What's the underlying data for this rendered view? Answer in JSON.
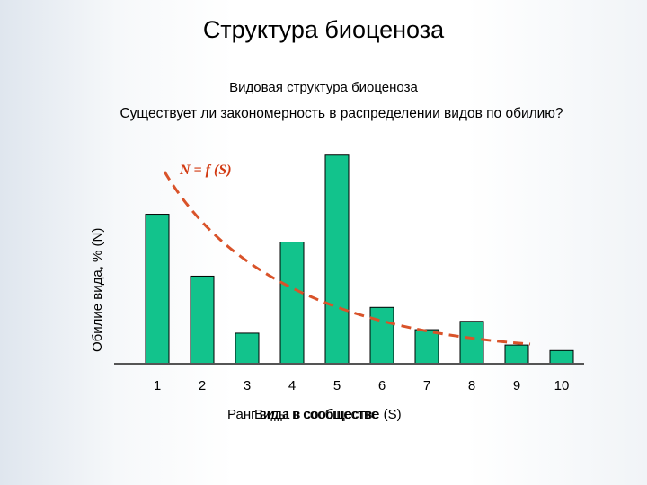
{
  "slide": {
    "title": "Структура биоценоза",
    "subtitle": "Видовая структура биоценоза",
    "question": "Существует ли закономерность в распределении видов по обилию?"
  },
  "chart_data": {
    "type": "bar",
    "categories": [
      "1",
      "2",
      "3",
      "4",
      "5",
      "6",
      "7",
      "8",
      "9",
      "10"
    ],
    "values": [
      21.5,
      12.6,
      4.4,
      17.5,
      30.0,
      8.1,
      4.9,
      6.1,
      2.7,
      1.9
    ],
    "ylim": [
      0,
      31
    ],
    "ylabel": "Обилие вида, % (N)",
    "xlabel_overlapping": [
      "Ранг вида в сообществе (S)",
      "Виды в сообществе"
    ],
    "curve_label": "N = f (S)",
    "bar_color": "#12c38c",
    "curve_color": "#d9532a"
  }
}
